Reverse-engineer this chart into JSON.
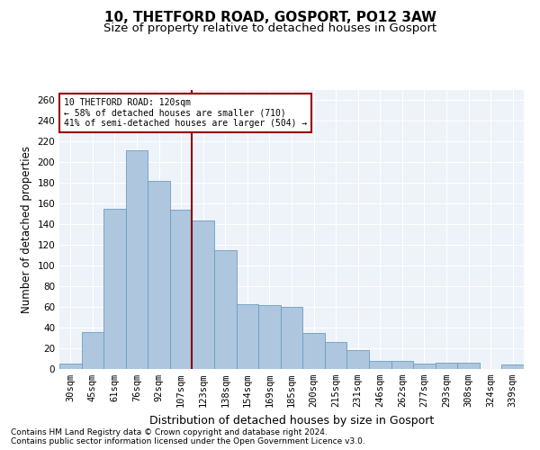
{
  "title": "10, THETFORD ROAD, GOSPORT, PO12 3AW",
  "subtitle": "Size of property relative to detached houses in Gosport",
  "xlabel": "Distribution of detached houses by size in Gosport",
  "ylabel": "Number of detached properties",
  "footnote1": "Contains HM Land Registry data © Crown copyright and database right 2024.",
  "footnote2": "Contains public sector information licensed under the Open Government Licence v3.0.",
  "categories": [
    "30sqm",
    "45sqm",
    "61sqm",
    "76sqm",
    "92sqm",
    "107sqm",
    "123sqm",
    "138sqm",
    "154sqm",
    "169sqm",
    "185sqm",
    "200sqm",
    "215sqm",
    "231sqm",
    "246sqm",
    "262sqm",
    "277sqm",
    "293sqm",
    "308sqm",
    "324sqm",
    "339sqm"
  ],
  "values": [
    5,
    36,
    155,
    212,
    182,
    154,
    144,
    115,
    63,
    62,
    60,
    35,
    26,
    18,
    8,
    8,
    5,
    6,
    6,
    0,
    4
  ],
  "bar_color": "#aec6de",
  "bar_edge_color": "#6a9fc0",
  "annotation_box_text": "10 THETFORD ROAD: 120sqm\n← 58% of detached houses are smaller (710)\n41% of semi-detached houses are larger (504) →",
  "annotation_line_color": "#8b0000",
  "annotation_box_edge_color": "#990000",
  "vline_color": "#8b0000",
  "ylim": [
    0,
    270
  ],
  "yticks": [
    0,
    20,
    40,
    60,
    80,
    100,
    120,
    140,
    160,
    180,
    200,
    220,
    240,
    260
  ],
  "bg_color": "#eef2f9",
  "title_fontsize": 11,
  "subtitle_fontsize": 9.5,
  "axis_label_fontsize": 8.5,
  "tick_fontsize": 7.5,
  "footnote_fontsize": 6.5
}
